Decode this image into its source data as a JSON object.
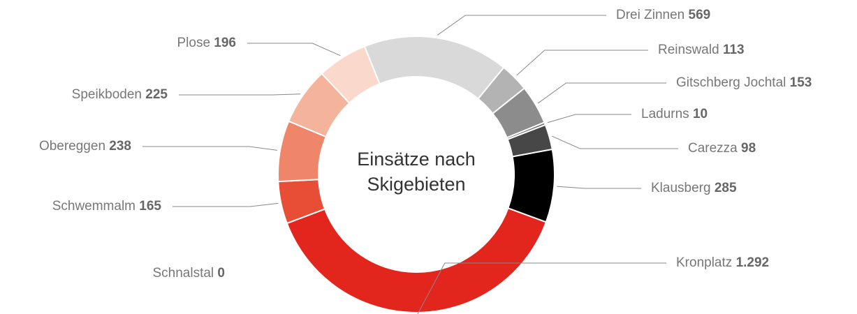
{
  "chart_data": {
    "type": "donut",
    "title": "Einsätze nach Skigebieten",
    "categories": [
      "Drei Zinnen",
      "Reinswald",
      "Gitschberg Jochtal",
      "Ladurns",
      "Carezza",
      "Klausberg",
      "Kronplatz",
      "Schnalstal",
      "Schwemmalm",
      "Obereggen",
      "Speikboden",
      "Plose"
    ],
    "values": [
      569,
      113,
      153,
      10,
      98,
      285,
      1292,
      0,
      165,
      238,
      225,
      196
    ],
    "value_labels": [
      "569",
      "113",
      "153",
      "10",
      "98",
      "285",
      "1.292",
      "0",
      "165",
      "238",
      "225",
      "196"
    ],
    "colors": [
      "#d9d9d9",
      "#b3b3b3",
      "#8c8c8c",
      "#6b6b6b",
      "#474747",
      "#000000",
      "#e2261d",
      "#e33b28",
      "#e84e36",
      "#ef866a",
      "#f4b49c",
      "#fad9cc"
    ]
  }
}
